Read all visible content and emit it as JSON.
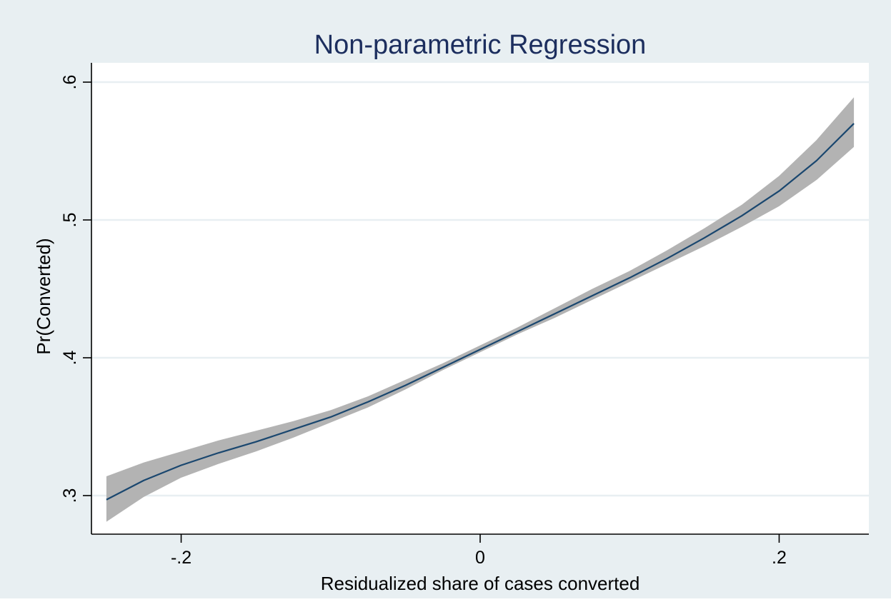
{
  "colors": {
    "outer_background": "#e8eff2",
    "plot_background": "#ffffff",
    "gridline": "#e8eff2",
    "axis": "#000000",
    "title": "#1c2e5e",
    "line": "#1a476f",
    "band": "#b3b3b3"
  },
  "chart_data": {
    "type": "line",
    "title": "Non-parametric Regression",
    "xlabel": "Residualized share of cases converted",
    "ylabel": "Pr(Converted)",
    "xlim": [
      -0.26,
      0.26
    ],
    "ylim": [
      0.272,
      0.614
    ],
    "xticks": [
      -0.2,
      0,
      0.2
    ],
    "xtick_labels": [
      "-.2",
      "0",
      ".2"
    ],
    "yticks": [
      0.3,
      0.4,
      0.5,
      0.6
    ],
    "ytick_labels": [
      ".3",
      ".4",
      ".5",
      ".6"
    ],
    "grid": "horizontal",
    "legend": "none",
    "series": [
      {
        "kind": "line",
        "x": [
          -0.25,
          -0.225,
          -0.2,
          -0.175,
          -0.15,
          -0.125,
          -0.1,
          -0.075,
          -0.05,
          -0.025,
          0.0,
          0.025,
          0.05,
          0.075,
          0.1,
          0.125,
          0.15,
          0.175,
          0.2,
          0.225,
          0.25
        ],
        "y": [
          0.297,
          0.311,
          0.322,
          0.331,
          0.339,
          0.348,
          0.357,
          0.368,
          0.38,
          0.393,
          0.406,
          0.419,
          0.432,
          0.445,
          0.458,
          0.472,
          0.487,
          0.503,
          0.521,
          0.543,
          0.57
        ]
      },
      {
        "kind": "ci-band",
        "x": [
          -0.25,
          -0.225,
          -0.2,
          -0.175,
          -0.15,
          -0.125,
          -0.1,
          -0.075,
          -0.05,
          -0.025,
          0.0,
          0.025,
          0.05,
          0.075,
          0.1,
          0.125,
          0.15,
          0.175,
          0.2,
          0.225,
          0.25
        ],
        "lower": [
          0.281,
          0.299,
          0.313,
          0.323,
          0.332,
          0.342,
          0.353,
          0.364,
          0.377,
          0.391,
          0.404,
          0.417,
          0.429,
          0.442,
          0.455,
          0.468,
          0.481,
          0.495,
          0.51,
          0.529,
          0.553
        ],
        "upper": [
          0.314,
          0.324,
          0.332,
          0.34,
          0.347,
          0.354,
          0.362,
          0.372,
          0.384,
          0.396,
          0.409,
          0.422,
          0.436,
          0.45,
          0.463,
          0.478,
          0.494,
          0.511,
          0.532,
          0.558,
          0.589
        ]
      }
    ]
  }
}
